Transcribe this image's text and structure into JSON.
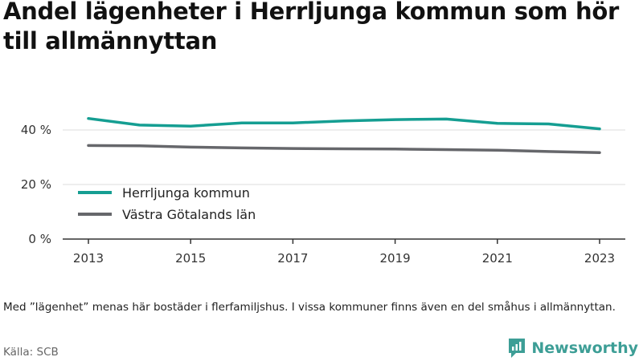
{
  "chart_data": {
    "type": "line",
    "title": "Andel lägenheter i Herrljunga kommun som hör till allmännyttan",
    "x": [
      2013,
      2014,
      2015,
      2016,
      2017,
      2018,
      2019,
      2020,
      2021,
      2022,
      2023
    ],
    "xticks": [
      "2013",
      "2015",
      "2017",
      "2019",
      "2021",
      "2023"
    ],
    "yticks": [
      0,
      20,
      40
    ],
    "ytick_labels": [
      "0 %",
      "20 %",
      "40 %"
    ],
    "ylim": [
      0,
      50
    ],
    "grid": true,
    "legend_position": "center-left",
    "series": [
      {
        "name": "Herrljunga kommun",
        "color": "#159e92",
        "values": [
          44.2,
          41.8,
          41.4,
          42.6,
          42.6,
          43.3,
          43.8,
          44.0,
          42.4,
          42.2,
          40.4
        ]
      },
      {
        "name": "Västra Götalands län",
        "color": "#66676b",
        "values": [
          34.3,
          34.2,
          33.7,
          33.4,
          33.2,
          33.1,
          33.0,
          32.8,
          32.6,
          32.1,
          31.7
        ]
      }
    ]
  },
  "footer": {
    "note": "Med ”lägenhet” menas här bostäder i flerfamiljshus. I vissa kommuner finns även en del småhus i allmännyttan.",
    "source": "Källa: SCB",
    "brand": "Newsworthy",
    "brand_icon": "newsworthy-logo-icon",
    "brand_color": "#3d9e96"
  }
}
